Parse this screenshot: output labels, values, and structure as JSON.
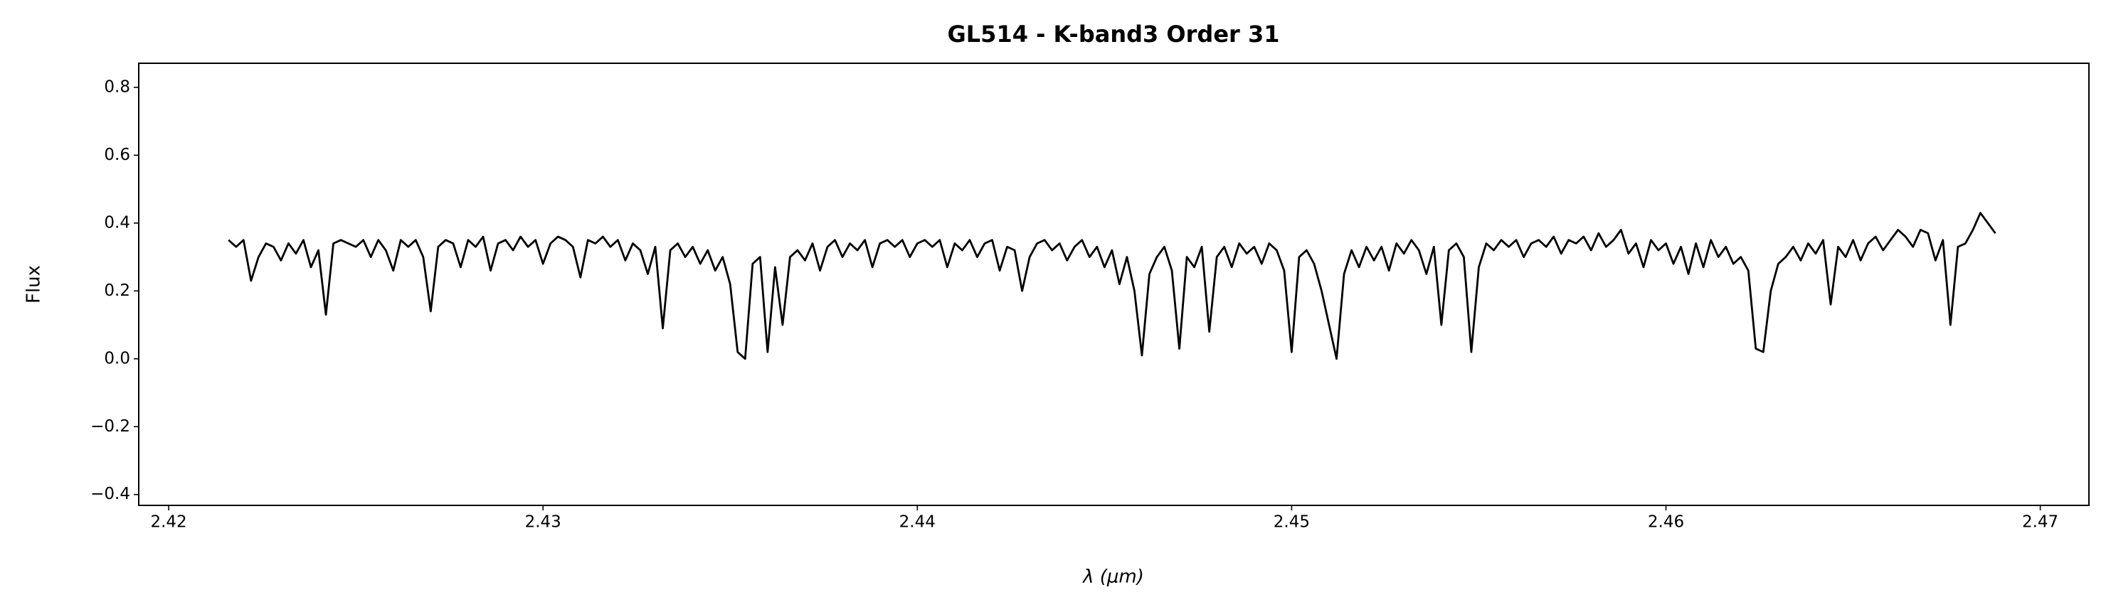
{
  "chart_data": {
    "type": "line",
    "title": "GL514 - K-band3 Order 31",
    "x_label": "λ (μm)",
    "y_label": "Flux",
    "color": "#000000",
    "x": [
      2.4216,
      2.4218,
      2.422,
      2.4222,
      2.4224,
      2.4226,
      2.4228,
      2.423,
      2.4232,
      2.4234,
      2.4236,
      2.4238,
      2.424,
      2.4242,
      2.4244,
      2.4246,
      2.4248,
      2.425,
      2.4252,
      2.4254,
      2.4256,
      2.4258,
      2.426,
      2.4262,
      2.4264,
      2.4266,
      2.4268,
      2.427,
      2.4272,
      2.4274,
      2.4276,
      2.4278,
      2.428,
      2.4282,
      2.4284,
      2.4286,
      2.4288,
      2.429,
      2.4292,
      2.4294,
      2.4296,
      2.4298,
      2.43,
      2.4302,
      2.4304,
      2.4306,
      2.4308,
      2.431,
      2.4312,
      2.4314,
      2.4316,
      2.4318,
      2.432,
      2.4322,
      2.4324,
      2.4326,
      2.4328,
      2.433,
      2.4332,
      2.4334,
      2.4336,
      2.4338,
      2.434,
      2.4342,
      2.4344,
      2.4346,
      2.4348,
      2.435,
      2.4352,
      2.4354,
      2.4356,
      2.4358,
      2.436,
      2.4362,
      2.4364,
      2.4366,
      2.4368,
      2.437,
      2.4372,
      2.4374,
      2.4376,
      2.4378,
      2.438,
      2.4382,
      2.4384,
      2.4386,
      2.4388,
      2.439,
      2.4392,
      2.4394,
      2.4396,
      2.4398,
      2.44,
      2.4402,
      2.4404,
      2.4406,
      2.4408,
      2.441,
      2.4412,
      2.4414,
      2.4416,
      2.4418,
      2.442,
      2.4422,
      2.4424,
      2.4426,
      2.4428,
      2.443,
      2.4432,
      2.4434,
      2.4436,
      2.4438,
      2.444,
      2.4442,
      2.4444,
      2.4446,
      2.4448,
      2.445,
      2.4452,
      2.4454,
      2.4456,
      2.4458,
      2.446,
      2.4462,
      2.4464,
      2.4466,
      2.4468,
      2.447,
      2.4472,
      2.4474,
      2.4476,
      2.4478,
      2.448,
      2.4482,
      2.4484,
      2.4486,
      2.4488,
      2.449,
      2.4492,
      2.4494,
      2.4496,
      2.4498,
      2.45,
      2.4502,
      2.4504,
      2.4506,
      2.4508,
      2.451,
      2.4512,
      2.4514,
      2.4516,
      2.4518,
      2.452,
      2.4522,
      2.4524,
      2.4526,
      2.4528,
      2.453,
      2.4532,
      2.4534,
      2.4536,
      2.4538,
      2.454,
      2.4542,
      2.4544,
      2.4546,
      2.4548,
      2.455,
      2.4552,
      2.4554,
      2.4556,
      2.4558,
      2.456,
      2.4562,
      2.4564,
      2.4566,
      2.4568,
      2.457,
      2.4572,
      2.4574,
      2.4576,
      2.4578,
      2.458,
      2.4582,
      2.4584,
      2.4586,
      2.4588,
      2.459,
      2.4592,
      2.4594,
      2.4596,
      2.4598,
      2.46,
      2.4602,
      2.4604,
      2.4606,
      2.4608,
      2.461,
      2.4612,
      2.4614,
      2.4616,
      2.4618,
      2.462,
      2.4622,
      2.4624,
      2.4626,
      2.4628,
      2.463,
      2.4632,
      2.4634,
      2.4636,
      2.4638,
      2.464,
      2.4642,
      2.4644,
      2.4646,
      2.4648,
      2.465,
      2.4652,
      2.4654,
      2.4656,
      2.4658,
      2.466,
      2.4662,
      2.4664,
      2.4666,
      2.4668,
      2.467,
      2.4672,
      2.4674,
      2.4676,
      2.4678,
      2.468,
      2.4682,
      2.4684,
      2.4686,
      2.4688
    ],
    "values": [
      0.35,
      0.33,
      0.35,
      0.23,
      0.3,
      0.34,
      0.33,
      0.29,
      0.34,
      0.31,
      0.35,
      0.27,
      0.32,
      0.13,
      0.34,
      0.35,
      0.34,
      0.33,
      0.35,
      0.3,
      0.35,
      0.32,
      0.26,
      0.35,
      0.33,
      0.35,
      0.3,
      0.14,
      0.33,
      0.35,
      0.34,
      0.27,
      0.35,
      0.33,
      0.36,
      0.26,
      0.34,
      0.35,
      0.32,
      0.36,
      0.33,
      0.35,
      0.28,
      0.34,
      0.36,
      0.35,
      0.33,
      0.24,
      0.35,
      0.34,
      0.36,
      0.33,
      0.35,
      0.29,
      0.34,
      0.32,
      0.25,
      0.33,
      0.09,
      0.32,
      0.34,
      0.3,
      0.33,
      0.28,
      0.32,
      0.26,
      0.3,
      0.22,
      0.02,
      0.0,
      0.28,
      0.3,
      0.02,
      0.27,
      0.1,
      0.3,
      0.32,
      0.29,
      0.34,
      0.26,
      0.33,
      0.35,
      0.3,
      0.34,
      0.32,
      0.35,
      0.27,
      0.34,
      0.35,
      0.33,
      0.35,
      0.3,
      0.34,
      0.35,
      0.33,
      0.35,
      0.27,
      0.34,
      0.32,
      0.35,
      0.3,
      0.34,
      0.35,
      0.26,
      0.33,
      0.32,
      0.2,
      0.3,
      0.34,
      0.35,
      0.32,
      0.34,
      0.29,
      0.33,
      0.35,
      0.3,
      0.33,
      0.27,
      0.32,
      0.22,
      0.3,
      0.2,
      0.01,
      0.25,
      0.3,
      0.33,
      0.26,
      0.03,
      0.3,
      0.27,
      0.33,
      0.08,
      0.3,
      0.33,
      0.27,
      0.34,
      0.31,
      0.33,
      0.28,
      0.34,
      0.32,
      0.26,
      0.02,
      0.3,
      0.32,
      0.28,
      0.2,
      0.1,
      0.0,
      0.25,
      0.32,
      0.27,
      0.33,
      0.29,
      0.33,
      0.26,
      0.34,
      0.31,
      0.35,
      0.32,
      0.25,
      0.33,
      0.1,
      0.32,
      0.34,
      0.3,
      0.02,
      0.27,
      0.34,
      0.32,
      0.35,
      0.33,
      0.35,
      0.3,
      0.34,
      0.35,
      0.33,
      0.36,
      0.31,
      0.35,
      0.34,
      0.36,
      0.32,
      0.37,
      0.33,
      0.35,
      0.38,
      0.31,
      0.34,
      0.27,
      0.35,
      0.32,
      0.34,
      0.28,
      0.33,
      0.25,
      0.34,
      0.27,
      0.35,
      0.3,
      0.33,
      0.28,
      0.3,
      0.26,
      0.03,
      0.02,
      0.2,
      0.28,
      0.3,
      0.33,
      0.29,
      0.34,
      0.31,
      0.35,
      0.16,
      0.33,
      0.3,
      0.35,
      0.29,
      0.34,
      0.36,
      0.32,
      0.35,
      0.38,
      0.36,
      0.33,
      0.38,
      0.37,
      0.29,
      0.35,
      0.1,
      0.33,
      0.34,
      0.38,
      0.43,
      0.4,
      0.37
    ],
    "xlim": [
      2.4192,
      2.4713
    ],
    "xticks": [
      2.42,
      2.43,
      2.44,
      2.45,
      2.46,
      2.47
    ],
    "ylim": [
      -0.432,
      0.871
    ],
    "yticks": [
      {
        "value": -0.4,
        "label": "−0.4"
      },
      {
        "value": -0.2,
        "label": "−0.2"
      },
      {
        "value": 0,
        "label": "0.0"
      },
      0.2,
      0.4,
      0.6,
      0.8
    ]
  }
}
